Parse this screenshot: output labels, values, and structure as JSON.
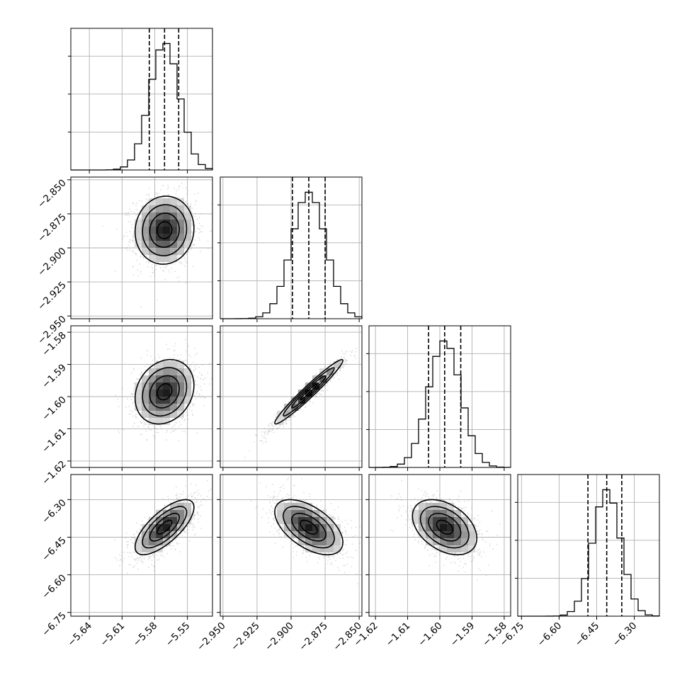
{
  "chart_data": {
    "type": "corner",
    "parameters": [
      {
        "ticks": [
          "−5.64",
          "−5.61",
          "−5.58",
          "−5.55"
        ],
        "tick_values": [
          -5.64,
          -5.61,
          -5.58,
          -5.55
        ],
        "range": [
          -5.657,
          -5.527
        ],
        "mean": -5.571,
        "sigma": 0.0135,
        "quantiles": [
          -5.585,
          -5.571,
          -5.558
        ]
      },
      {
        "ticks": [
          "−2.950",
          "−2.925",
          "−2.900",
          "−2.875",
          "−2.850"
        ],
        "tick_values": [
          -2.95,
          -2.925,
          -2.9,
          -2.875,
          -2.85
        ],
        "range": [
          -2.952,
          -2.848
        ],
        "mean": -2.887,
        "sigma": 0.0125,
        "quantiles": [
          -2.899,
          -2.887,
          -2.875
        ]
      },
      {
        "ticks": [
          "−1.62",
          "−1.61",
          "−1.60",
          "−1.59",
          "−1.58"
        ],
        "tick_values": [
          -1.62,
          -1.61,
          -1.6,
          -1.59,
          -1.58
        ],
        "range": [
          -1.622,
          -1.578
        ],
        "mean": -1.5985,
        "sigma": 0.005,
        "quantiles": [
          -1.6035,
          -1.5985,
          -1.5935
        ]
      },
      {
        "ticks": [
          "−6.75",
          "−6.60",
          "−6.45",
          "−6.30"
        ],
        "tick_values": [
          -6.75,
          -6.6,
          -6.45,
          -6.3
        ],
        "range": [
          -6.765,
          -6.2
        ],
        "mean": -6.41,
        "sigma": 0.055,
        "quantiles": [
          -6.485,
          -6.41,
          -6.35
        ]
      }
    ],
    "correlations": {
      "1,0": 0.05,
      "2,0": 0.2,
      "2,1": 0.97,
      "3,0": 0.72,
      "3,1": -0.55,
      "3,2": -0.4
    },
    "contour_levels": [
      0.5,
      1.0,
      1.5,
      2.0
    ],
    "grid": true,
    "histogram_bins": 20,
    "colors": {
      "line": "#000000",
      "grid": "#b0b0b0",
      "scatter": "#888888"
    }
  }
}
